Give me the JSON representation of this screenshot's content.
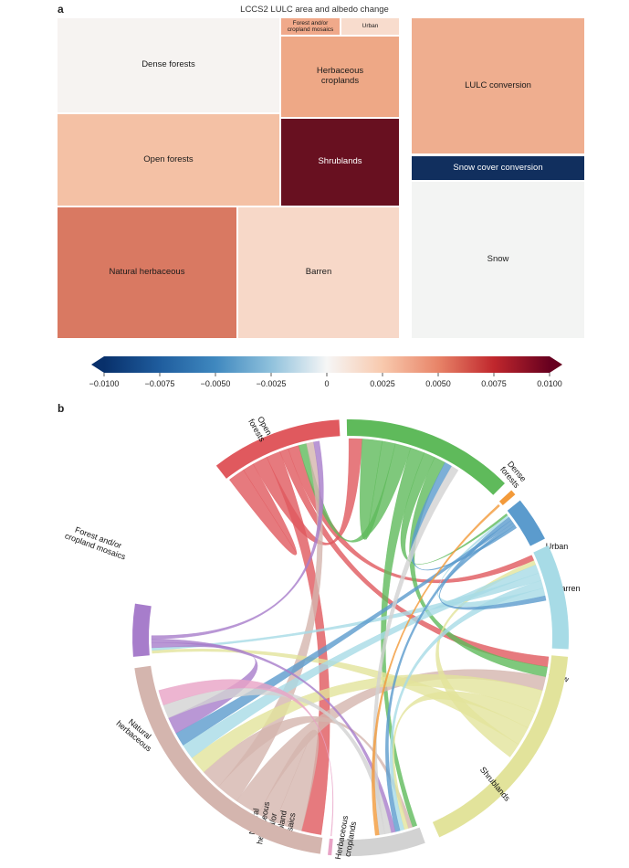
{
  "panel_a": {
    "letter": "a",
    "title": "LCCS2 LULC area and albedo change",
    "tiles": {
      "dense_forests": {
        "label": "Dense forests",
        "value": 0.0001,
        "color": "#f6f3f1"
      },
      "open_forests": {
        "label": "Open forests",
        "value": 0.0028,
        "color": "#f4c1a5"
      },
      "forest_cropland_mosaics": {
        "label": "Forest and/or cropland mosaics",
        "value": 0.0035,
        "color": "#f0a98a"
      },
      "urban": {
        "label": "Urban",
        "value": 0.0018,
        "color": "#f8dccd"
      },
      "herbaceous_croplands": {
        "label": "Herbaceous croplands",
        "value": 0.0038,
        "color": "#eea886"
      },
      "shrublands": {
        "label": "Shrublands",
        "value": 0.0098,
        "color": "#681020"
      },
      "natural_herbaceous": {
        "label": "Natural herbaceous",
        "value": 0.0055,
        "color": "#d97962"
      },
      "barren": {
        "label": "Barren",
        "value": 0.0016,
        "color": "#f7d8c8"
      },
      "lulc_conversion": {
        "label": "LULC conversion",
        "value": 0.0037,
        "color": "#efae8f"
      },
      "snow_cover_conversion": {
        "label": "Snow cover conversion",
        "value": -0.0098,
        "color": "#112f5e"
      },
      "snow": {
        "label": "Snow",
        "value": 0.0,
        "color": "#f3f4f3"
      }
    },
    "colorbar": {
      "ticks": [
        "−0.0100",
        "−0.0075",
        "−0.0050",
        "−0.0025",
        "0",
        "0.0025",
        "0.0050",
        "0.0075",
        "0.0100"
      ],
      "stops": [
        "#08306b",
        "#1f5d9e",
        "#3f88bf",
        "#8fc1dc",
        "#f6f6f6",
        "#f8c9ad",
        "#e88468",
        "#c0272d",
        "#67001f"
      ]
    }
  },
  "panel_b": {
    "letter": "b",
    "arcs": [
      {
        "label": "Open\nforests",
        "color": "#e0595e"
      },
      {
        "label": "Dense\nforests",
        "color": "#5fba5b"
      },
      {
        "label": "Urban",
        "color": "#f39a3a"
      },
      {
        "label": "Barren",
        "color": "#5b9bcd"
      },
      {
        "label": "Snow",
        "color": "#a7dbe6"
      },
      {
        "label": "Shrublands",
        "color": "#e2e39b"
      },
      {
        "label": "Herbaceous\ncroplands",
        "color": "#d2d2d2"
      },
      {
        "label": "Natural\nherbaceous\nand/or\ncropland\nmosaics",
        "color": "#e8a3c6"
      },
      {
        "label": "Natural\nherbaceous",
        "color": "#d4b5ae"
      },
      {
        "label": "Forest and/or\ncropland mosaics",
        "color": "#a77dcb"
      }
    ]
  }
}
